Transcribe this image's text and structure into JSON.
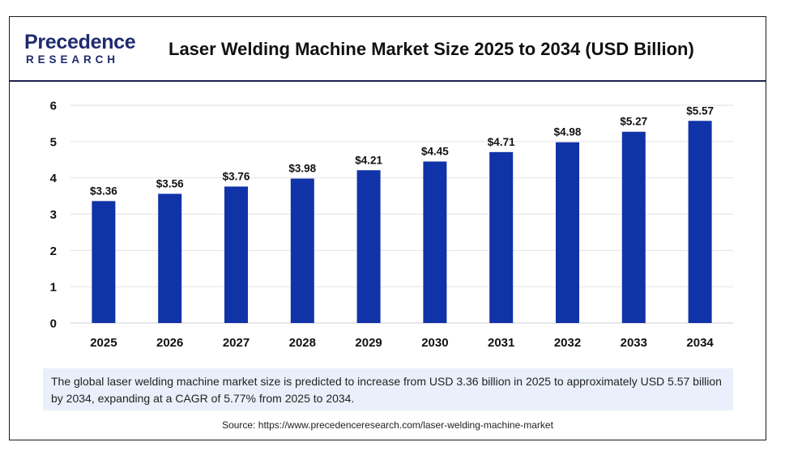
{
  "logo": {
    "brand_top": "Precedence",
    "brand_bottom": "RESEARCH"
  },
  "header": {
    "title": "Laser Welding Machine Market Size 2025 to 2034 (USD Billion)"
  },
  "colors": {
    "bar": "#1133a8",
    "gridline": "#e2e2e2",
    "brand": "#1f2b6e",
    "caption_bg": "#eaf0fb"
  },
  "chart_data": {
    "type": "bar",
    "title": "Laser Welding Machine Market Size 2025 to 2034 (USD Billion)",
    "categories": [
      "2025",
      "2026",
      "2027",
      "2028",
      "2029",
      "2030",
      "2031",
      "2032",
      "2033",
      "2034"
    ],
    "values": [
      3.36,
      3.56,
      3.76,
      3.98,
      4.21,
      4.45,
      4.71,
      4.98,
      5.27,
      5.57
    ],
    "data_labels": [
      "$3.36",
      "$3.56",
      "$3.76",
      "$3.98",
      "$4.21",
      "$4.45",
      "$4.71",
      "$4.98",
      "$5.27",
      "$5.57"
    ],
    "yticks": [
      "0",
      "1",
      "2",
      "3",
      "4",
      "5",
      "6"
    ],
    "ylim": [
      0,
      6
    ],
    "xlabel": "",
    "ylabel": "",
    "grid": true,
    "legend": "none"
  },
  "caption": "The global laser welding machine market size is predicted to increase from USD 3.36 billion in 2025 to approximately USD 5.57 billion by 2034, expanding at a CAGR of 5.77% from 2025 to 2034.",
  "source": "Source: https://www.precedenceresearch.com/laser-welding-machine-market"
}
